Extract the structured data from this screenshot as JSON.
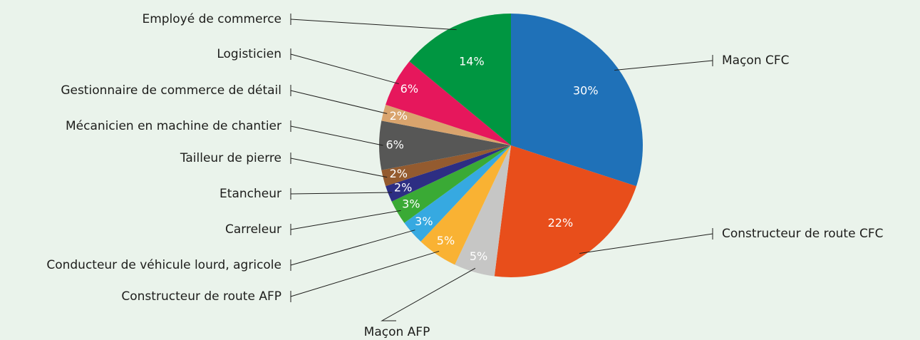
{
  "chart_data": {
    "type": "pie",
    "categories": [
      "Maçon CFC",
      "Constructeur de route CFC",
      "Maçon AFP",
      "Constructeur de route AFP",
      "Conducteur de véhicule lourd, agricole",
      "Carreleur",
      "Etancheur",
      "Tailleur de pierre",
      "Mécanicien en machine de chantier",
      "Gestionnaire de commerce de détail",
      "Logisticien",
      "Employé de commerce"
    ],
    "values": [
      30,
      22,
      5,
      5,
      3,
      3,
      2,
      2,
      6,
      2,
      6,
      14
    ],
    "value_labels": [
      "30%",
      "22%",
      "5%",
      "5%",
      "3%",
      "3%",
      "2%",
      "2%",
      "6%",
      "2%",
      "6%",
      "14%"
    ],
    "colors": [
      "#1f71b8",
      "#e84e1b",
      "#c6c6c5",
      "#f9b233",
      "#36a9e1",
      "#3aaa35",
      "#2d2e83",
      "#945b2f",
      "#575756",
      "#d9a46d",
      "#e6175c",
      "#009641"
    ]
  }
}
